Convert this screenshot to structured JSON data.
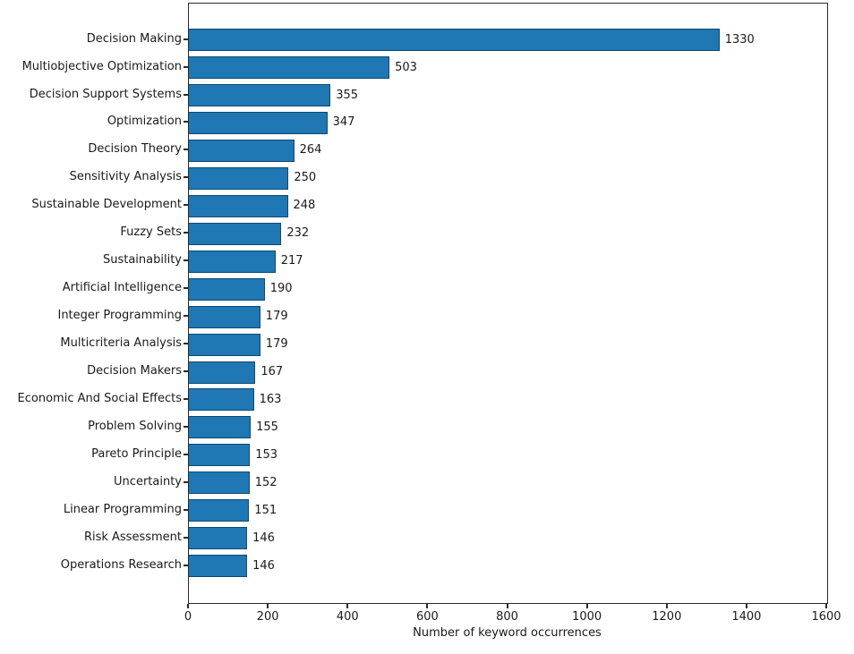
{
  "chart_data": {
    "type": "bar",
    "orientation": "horizontal",
    "title": "",
    "xlabel": "Number of keyword occurrences",
    "ylabel": "",
    "categories": [
      "Decision Making",
      "Multiobjective Optimization",
      "Decision Support Systems",
      "Optimization",
      "Decision Theory",
      "Sensitivity Analysis",
      "Sustainable Development",
      "Fuzzy Sets",
      "Sustainability",
      "Artificial Intelligence",
      "Integer Programming",
      "Multicriteria Analysis",
      "Decision Makers",
      "Economic And Social Effects",
      "Problem Solving",
      "Pareto Principle",
      "Uncertainty",
      "Linear Programming",
      "Risk Assessment",
      "Operations Research"
    ],
    "values": [
      1330,
      503,
      355,
      347,
      264,
      250,
      248,
      232,
      217,
      190,
      179,
      179,
      167,
      163,
      155,
      153,
      152,
      151,
      146,
      146
    ],
    "value_labels": [
      "1330",
      "503",
      "355",
      "347",
      "264",
      "250",
      "248",
      "232",
      "217",
      "190",
      "179",
      "179",
      "167",
      "163",
      "155",
      "153",
      "152",
      "151",
      "146",
      "146"
    ],
    "xlim": [
      0,
      1600
    ],
    "xticks": [
      0,
      200,
      400,
      600,
      800,
      1000,
      1200,
      1400,
      1600
    ],
    "xtick_labels": [
      "0",
      "200",
      "400",
      "600",
      "800",
      "1000",
      "1200",
      "1400",
      "1600"
    ],
    "grid": false,
    "legend": null,
    "bar_color": "#1f77b4",
    "bar_edge_color": "#0e4a73",
    "axis_color": "#2b2b2b",
    "text_color": "#1a1a1a"
  }
}
